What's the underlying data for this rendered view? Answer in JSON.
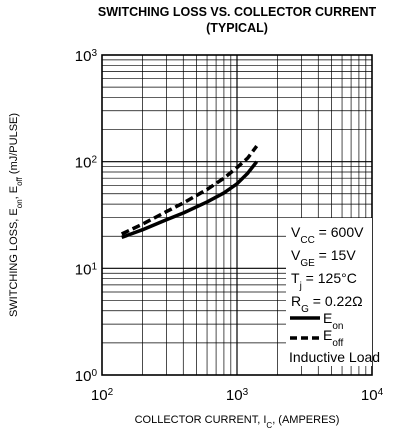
{
  "chart_data": {
    "type": "line",
    "title": "SWITCHING LOSS VS. COLLECTOR CURRENT",
    "subtitle": "(TYPICAL)",
    "xlabel": {
      "main": "COLLECTOR CURRENT, I",
      "sub": "C",
      "tail": ", (AMPERES)"
    },
    "ylabel": {
      "a": "SWITCHING LOSS, E",
      "a_sub": "on",
      "b": ", E",
      "b_sub": "off",
      "c": " (mJ/PULSE)"
    },
    "x_scale": "log",
    "y_scale": "log",
    "xlim": [
      100,
      10000
    ],
    "ylim": [
      1,
      1000
    ],
    "x_ticks": [
      {
        "value": 100,
        "base": "10",
        "exp": "2"
      },
      {
        "value": 1000,
        "base": "10",
        "exp": "3"
      },
      {
        "value": 10000,
        "base": "10",
        "exp": "4"
      }
    ],
    "y_ticks": [
      {
        "value": 1,
        "base": "10",
        "exp": "0"
      },
      {
        "value": 10,
        "base": "10",
        "exp": "1"
      },
      {
        "value": 100,
        "base": "10",
        "exp": "2"
      },
      {
        "value": 1000,
        "base": "10",
        "exp": "3"
      }
    ],
    "grid": true,
    "series": [
      {
        "name": "E",
        "name_sub": "on",
        "style": "solid",
        "x": [
          140,
          200,
          300,
          400,
          600,
          800,
          1000,
          1200,
          1400
        ],
        "y": [
          19.5,
          23,
          28.5,
          33,
          42,
          51,
          62,
          78,
          100
        ]
      },
      {
        "name": "E",
        "name_sub": "off",
        "style": "dashed",
        "x": [
          140,
          200,
          300,
          400,
          600,
          800,
          1000,
          1200,
          1400
        ],
        "y": [
          21,
          26,
          34,
          41,
          55,
          70,
          88,
          108,
          140
        ]
      }
    ],
    "conditions": [
      {
        "main": "V",
        "sub": "CC",
        "tail": " = 600V"
      },
      {
        "main": "V",
        "sub": "GE",
        "tail": " = 15V"
      },
      {
        "main": "T",
        "sub": "j",
        "tail": " = 125°C"
      },
      {
        "main": "R",
        "sub": "G",
        "tail": " = 0.22Ω"
      }
    ],
    "note": "Inductive Load",
    "legend_position": "bottom-right"
  },
  "colors": {
    "line": "#000000",
    "grid": "#000000",
    "background": "#ffffff"
  }
}
